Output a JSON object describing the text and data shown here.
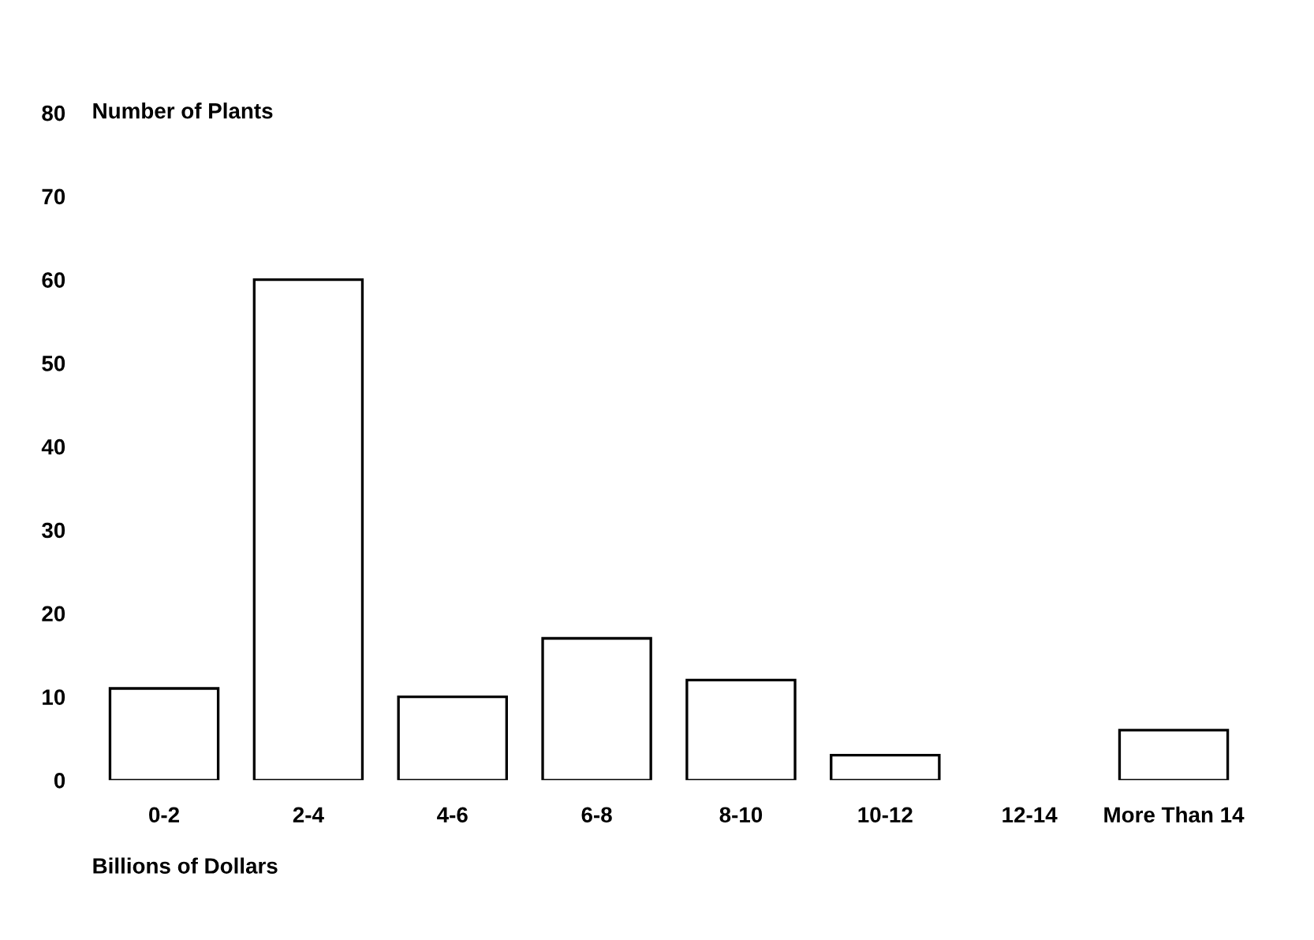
{
  "chart_data": {
    "type": "bar",
    "categories": [
      "0-2",
      "2-4",
      "4-6",
      "6-8",
      "8-10",
      "10-12",
      "12-14",
      "More Than 14"
    ],
    "values": [
      11,
      60,
      10,
      17,
      12,
      3,
      0,
      6
    ],
    "color": "#ffffff",
    "ylabel": "Number of Plants",
    "xlabel": "Billions of Dollars",
    "ylim": [
      0,
      80
    ],
    "yticks": [
      0,
      10,
      20,
      30,
      40,
      50,
      60,
      70,
      80
    ],
    "grid": false
  }
}
